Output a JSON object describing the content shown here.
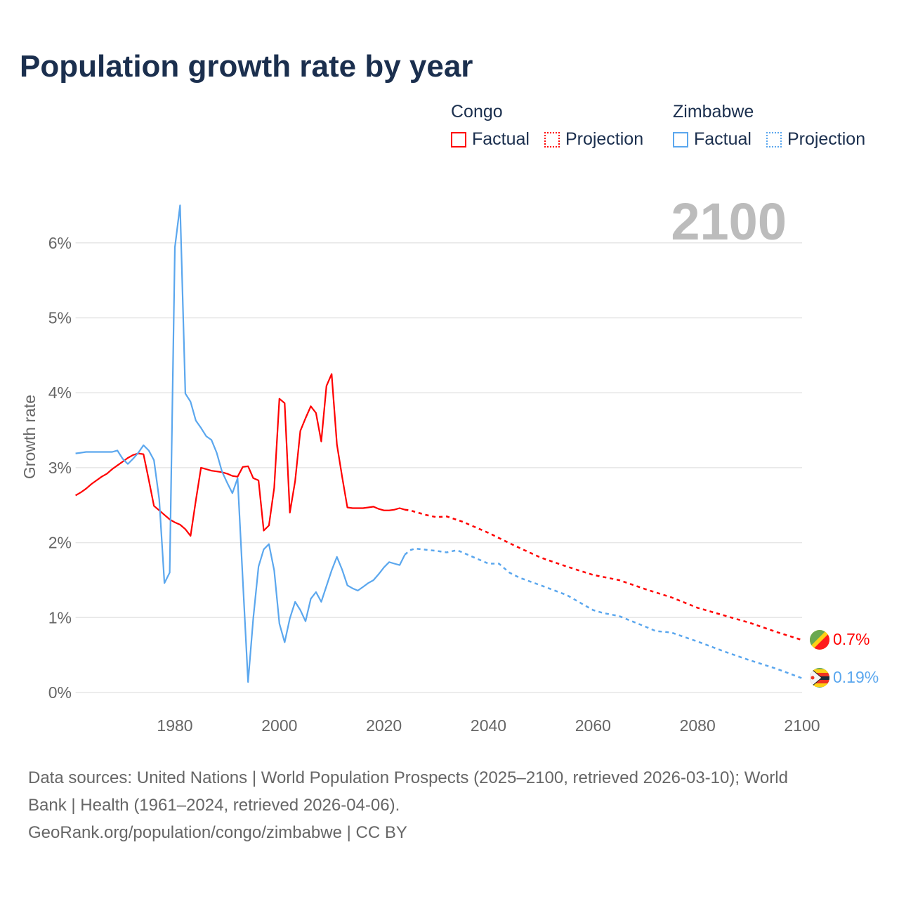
{
  "title": "Population growth rate by year",
  "legend": [
    {
      "name": "Congo",
      "color": "#ff0000",
      "items": [
        "Factual",
        "Projection"
      ]
    },
    {
      "name": "Zimbabwe",
      "color": "#5ba7ee",
      "items": [
        "Factual",
        "Projection"
      ]
    }
  ],
  "chart_data": {
    "type": "line",
    "title": "Population growth rate by year",
    "xlabel": "",
    "ylabel": "Growth rate",
    "xlim": [
      1961,
      2100
    ],
    "ylim": [
      0,
      6.5
    ],
    "x_ticks": [
      1980,
      2000,
      2020,
      2040,
      2060,
      2080,
      2100
    ],
    "y_ticks": [
      0,
      1,
      2,
      3,
      4,
      5,
      6
    ],
    "y_tick_labels": [
      "0%",
      "1%",
      "2%",
      "3%",
      "4%",
      "5%",
      "6%"
    ],
    "current_year_label": "2100",
    "grid": true,
    "series": [
      {
        "name": "Congo",
        "color": "#ff0000",
        "end_label": "0.7%",
        "factual": {
          "x": [
            1961,
            1962,
            1963,
            1964,
            1965,
            1966,
            1967,
            1968,
            1969,
            1970,
            1971,
            1972,
            1973,
            1974,
            1975,
            1976,
            1977,
            1978,
            1979,
            1980,
            1981,
            1982,
            1983,
            1984,
            1985,
            1986,
            1987,
            1988,
            1989,
            1990,
            1991,
            1992,
            1993,
            1994,
            1995,
            1996,
            1997,
            1998,
            1999,
            2000,
            2001,
            2002,
            2003,
            2004,
            2005,
            2006,
            2007,
            2008,
            2009,
            2010,
            2011,
            2012,
            2013,
            2014,
            2015,
            2016,
            2017,
            2018,
            2019,
            2020,
            2021,
            2022,
            2023,
            2024
          ],
          "y": [
            2.63,
            2.67,
            2.72,
            2.78,
            2.83,
            2.88,
            2.92,
            2.98,
            3.03,
            3.08,
            3.13,
            3.17,
            3.19,
            3.18,
            2.84,
            2.49,
            2.43,
            2.37,
            2.31,
            2.27,
            2.24,
            2.18,
            2.09,
            2.56,
            3.0,
            2.98,
            2.96,
            2.95,
            2.94,
            2.92,
            2.89,
            2.88,
            3.01,
            3.02,
            2.86,
            2.83,
            2.16,
            2.23,
            2.73,
            3.92,
            3.86,
            2.4,
            2.82,
            3.49,
            3.66,
            3.82,
            3.73,
            3.35,
            4.09,
            4.25,
            3.31,
            2.88,
            2.47,
            2.46,
            2.46,
            2.46,
            2.47,
            2.48,
            2.45,
            2.43,
            2.43,
            2.44,
            2.46,
            2.44
          ]
        },
        "projection": {
          "x": [
            2024,
            2025,
            2028,
            2030,
            2032,
            2035,
            2040,
            2045,
            2050,
            2055,
            2060,
            2065,
            2070,
            2075,
            2080,
            2085,
            2090,
            2095,
            2100
          ],
          "y": [
            2.44,
            2.43,
            2.37,
            2.34,
            2.35,
            2.28,
            2.13,
            1.96,
            1.8,
            1.68,
            1.57,
            1.5,
            1.38,
            1.27,
            1.13,
            1.03,
            0.93,
            0.81,
            0.7
          ]
        }
      },
      {
        "name": "Zimbabwe",
        "color": "#5ba7ee",
        "end_label": "0.19%",
        "factual": {
          "x": [
            1961,
            1962,
            1963,
            1964,
            1965,
            1966,
            1967,
            1968,
            1969,
            1970,
            1971,
            1972,
            1973,
            1974,
            1975,
            1976,
            1977,
            1978,
            1979,
            1980,
            1981,
            1982,
            1983,
            1984,
            1985,
            1986,
            1987,
            1988,
            1989,
            1990,
            1991,
            1992,
            1993,
            1994,
            1995,
            1996,
            1997,
            1998,
            1999,
            2000,
            2001,
            2002,
            2003,
            2004,
            2005,
            2006,
            2007,
            2008,
            2009,
            2010,
            2011,
            2012,
            2013,
            2014,
            2015,
            2016,
            2017,
            2018,
            2019,
            2020,
            2021,
            2022,
            2023,
            2024
          ],
          "y": [
            3.19,
            3.2,
            3.21,
            3.21,
            3.21,
            3.21,
            3.21,
            3.21,
            3.23,
            3.12,
            3.05,
            3.12,
            3.2,
            3.3,
            3.23,
            3.1,
            2.58,
            1.46,
            1.6,
            5.94,
            6.5,
            3.99,
            3.88,
            3.63,
            3.53,
            3.42,
            3.37,
            3.2,
            2.95,
            2.8,
            2.66,
            2.86,
            1.5,
            0.14,
            0.99,
            1.68,
            1.91,
            1.98,
            1.63,
            0.92,
            0.67,
            0.99,
            1.21,
            1.1,
            0.95,
            1.25,
            1.34,
            1.21,
            1.42,
            1.63,
            1.81,
            1.64,
            1.43,
            1.39,
            1.36,
            1.41,
            1.46,
            1.5,
            1.58,
            1.67,
            1.74,
            1.72,
            1.7,
            1.84
          ]
        },
        "projection": {
          "x": [
            2024,
            2025,
            2026,
            2030,
            2032,
            2034,
            2036,
            2038,
            2040,
            2042,
            2044,
            2046,
            2050,
            2055,
            2060,
            2062,
            2065,
            2070,
            2072,
            2075,
            2080,
            2085,
            2090,
            2095,
            2100
          ],
          "y": [
            1.84,
            1.9,
            1.92,
            1.89,
            1.87,
            1.9,
            1.84,
            1.78,
            1.72,
            1.72,
            1.6,
            1.53,
            1.43,
            1.3,
            1.1,
            1.06,
            1.02,
            0.88,
            0.82,
            0.8,
            0.68,
            0.55,
            0.43,
            0.32,
            0.19
          ]
        }
      }
    ]
  },
  "footer": {
    "line1": "Data sources: United Nations | World Population Prospects (2025–2100, retrieved 2026-03-10); World",
    "line2": "Bank | Health (1961–2024, retrieved 2026-04-06).",
    "line3": "GeoRank.org/population/congo/zimbabwe | CC BY"
  }
}
